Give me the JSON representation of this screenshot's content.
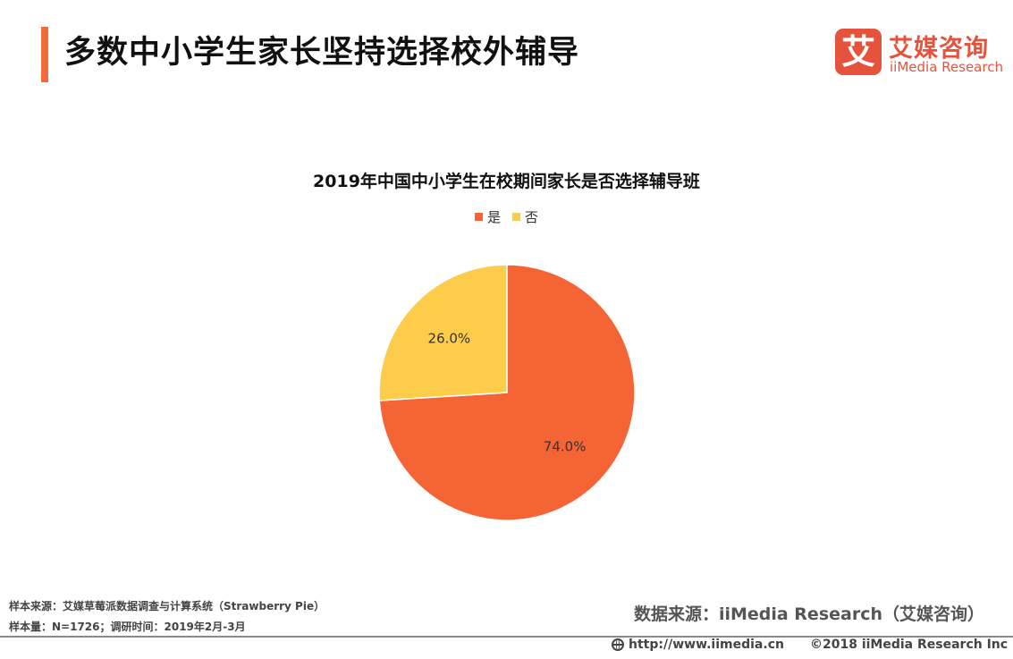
{
  "header": {
    "title": "多数中小学生家长坚持选择校外辅导",
    "accent_color": "#F26B3A"
  },
  "logo": {
    "mark": "艾",
    "name_cn": "艾媒咨询",
    "name_en": "iiMedia Research",
    "color": "#E5533C"
  },
  "chart_data": {
    "type": "pie",
    "title": "2019年中国中小学生在校期间家长是否选择辅导班",
    "legend_position": "top",
    "categories": [
      "是",
      "否"
    ],
    "values": [
      74.0,
      26.0
    ],
    "labels": [
      "74.0%",
      "26.0%"
    ],
    "colors": [
      "#F46434",
      "#FDCC4B"
    ]
  },
  "notes": {
    "sample_source": "样本来源：艾媒草莓派数据调查与计算系统（Strawberry Pie）",
    "sample_size": "样本量：N=1726；调研时间：2019年2月-3月"
  },
  "source": "数据来源：iiMedia Research（艾媒咨询）",
  "footer": {
    "url": "http://www.iimedia.cn",
    "icon": "globe-icon",
    "copyright": "©2018 iiMedia Research Inc"
  }
}
